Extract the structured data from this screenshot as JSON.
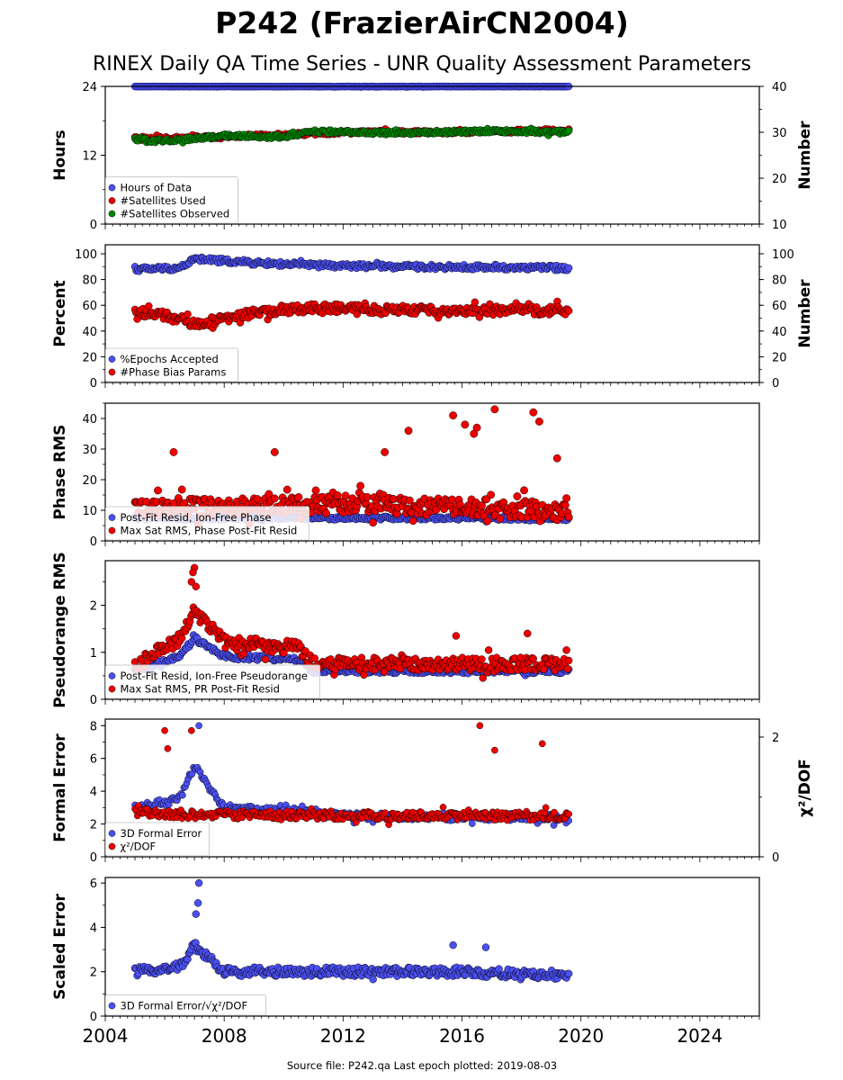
{
  "chart_data": {
    "title": "P242 (FrazierAirCN2004)",
    "subtitle": "RINEX Daily QA Time Series - UNR Quality Assessment Parameters",
    "footer": "Source file: P242.qa Last epoch plotted: 2019-08-03",
    "x_axis": {
      "min": 2004,
      "max": 2026,
      "ticks": [
        "2004",
        "2008",
        "2012",
        "2016",
        "2020",
        "2024"
      ],
      "data_start": 2005.0,
      "data_end": 2019.59
    },
    "colors": {
      "blue": "#4b4ff0",
      "red": "#ee0000",
      "green": "#008800",
      "navy": "#0a0a60"
    },
    "panels": [
      {
        "type": "scatter",
        "ylabel": "Hours",
        "ylim": [
          0,
          24
        ],
        "yticks": [
          "0",
          "12",
          "24"
        ],
        "y2label": "Number",
        "y2lim": [
          10,
          40
        ],
        "y2ticks": [
          "10",
          "20",
          "30",
          "40"
        ],
        "legend": [
          "Hours of Data",
          "#Satellites Used",
          "#Satellites Observed"
        ],
        "series": [
          {
            "name": "Hours of Data",
            "color": "blue",
            "axis": "left",
            "x": [
              2005.0,
              2008.0,
              2012.0,
              2016.0,
              2019.59
            ],
            "y": [
              24,
              24,
              24,
              24,
              24
            ]
          },
          {
            "name": "#Satellites Used",
            "color": "red",
            "axis": "right",
            "x": [
              2005.0,
              2008.0,
              2012.0,
              2016.0,
              2019.59
            ],
            "y": [
              28.6,
              29.0,
              30.0,
              30.0,
              30.5
            ]
          },
          {
            "name": "#Satellites Observed",
            "color": "green",
            "axis": "right",
            "x": [
              2005.0,
              2006.0,
              2008.0,
              2010.0,
              2011.0,
              2014.0,
              2017.0,
              2019.59
            ],
            "y": [
              28.5,
              28.0,
              29.3,
              29.0,
              30.2,
              29.8,
              30.3,
              30.0
            ]
          }
        ]
      },
      {
        "type": "scatter",
        "ylabel": "Percent",
        "ylim": [
          0,
          107
        ],
        "yticks": [
          "0",
          "20",
          "40",
          "60",
          "80",
          "100"
        ],
        "y2label": "Number",
        "y2lim": [
          0,
          107
        ],
        "y2ticks": [
          "0",
          "20",
          "40",
          "60",
          "80",
          "100"
        ],
        "legend": [
          "%Epochs Accepted",
          "#Phase Bias Params"
        ],
        "series": [
          {
            "name": "%Epochs Accepted",
            "color": "blue",
            "axis": "left",
            "x": [
              2005.0,
              2006.5,
              2007.0,
              2009.0,
              2011.0,
              2014.0,
              2019.59
            ],
            "y": [
              88,
              89,
              96,
              93,
              91,
              90,
              89
            ]
          },
          {
            "name": "#Phase Bias Params",
            "color": "red",
            "axis": "right",
            "x": [
              2005.0,
              2006.0,
              2007.0,
              2009.0,
              2011.0,
              2015.0,
              2019.59
            ],
            "y": [
              55,
              52,
              45,
              54,
              58,
              56,
              56
            ]
          }
        ]
      },
      {
        "type": "scatter",
        "ylabel": "Phase RMS",
        "ylim": [
          0,
          45
        ],
        "yticks": [
          "0",
          "10",
          "20",
          "30",
          "40"
        ],
        "legend": [
          "Post-Fit Resid, Ion-Free Phase",
          "Max Sat RMS, Phase Post-Fit Resid"
        ],
        "series": [
          {
            "name": "Post-Fit Resid, Ion-Free Phase",
            "color": "blue",
            "axis": "left",
            "x": [
              2005.0,
              2010.0,
              2015.0,
              2019.59
            ],
            "y": [
              7.5,
              7.5,
              7.5,
              7.2
            ]
          },
          {
            "name": "Max Sat RMS, Phase Post-Fit Resid",
            "color": "red",
            "axis": "left",
            "x": [
              2005.0,
              2008.0,
              2012.0,
              2016.0,
              2019.59
            ],
            "y": [
              11,
              11,
              12,
              11,
              10
            ]
          }
        ],
        "outliers": [
          [
            2015.7,
            41
          ],
          [
            2016.1,
            38
          ],
          [
            2016.4,
            35
          ],
          [
            2016.5,
            37
          ],
          [
            2017.1,
            43
          ],
          [
            2018.4,
            42
          ],
          [
            2018.6,
            39
          ],
          [
            2014.2,
            36
          ],
          [
            2006.3,
            29
          ],
          [
            2009.7,
            29
          ],
          [
            2013.4,
            29
          ],
          [
            2019.2,
            27
          ]
        ]
      },
      {
        "type": "scatter",
        "ylabel": "Pseudorange RMS",
        "ylim": [
          0,
          2.95
        ],
        "yticks": [
          "0",
          "1",
          "2"
        ],
        "legend": [
          "Post-Fit Resid, Ion-Free Pseudorange",
          "Max Sat RMS, PR Post-Fit Resid"
        ],
        "series": [
          {
            "name": "Post-Fit Resid, Ion-Free Pseudorange",
            "color": "blue",
            "axis": "left",
            "x": [
              2005.0,
              2006.5,
              2007.0,
              2008.0,
              2010.5,
              2011.0,
              2019.59
            ],
            "y": [
              0.6,
              0.9,
              1.3,
              0.9,
              0.85,
              0.6,
              0.6
            ]
          },
          {
            "name": "Max Sat RMS, PR Post-Fit Resid",
            "color": "red",
            "axis": "left",
            "x": [
              2005.0,
              2006.5,
              2007.0,
              2008.0,
              2010.5,
              2011.0,
              2019.59
            ],
            "y": [
              0.7,
              1.3,
              1.9,
              1.2,
              1.1,
              0.75,
              0.75
            ]
          }
        ],
        "outliers": [
          [
            2007.0,
            2.8
          ],
          [
            2006.95,
            2.7
          ],
          [
            2006.9,
            2.5
          ],
          [
            2007.05,
            2.4
          ],
          [
            2018.2,
            1.4
          ],
          [
            2015.8,
            1.35
          ]
        ]
      },
      {
        "type": "scatter",
        "ylabel": "Formal Error",
        "ylim": [
          0,
          8.4
        ],
        "yticks": [
          "0",
          "2",
          "4",
          "6",
          "8"
        ],
        "y2label": "χ²/DOF",
        "y2lim": [
          0,
          2.3
        ],
        "y2ticks": [
          "0",
          "2"
        ],
        "legend": [
          "3D Formal Error",
          "χ²/DOF"
        ],
        "series": [
          {
            "name": "3D Formal Error",
            "color": "blue",
            "axis": "left",
            "x": [
              2005.0,
              2006.5,
              2007.0,
              2008.0,
              2012.0,
              2019.59
            ],
            "y": [
              3.0,
              3.5,
              5.5,
              3.0,
              2.5,
              2.4
            ]
          },
          {
            "name": "χ²/DOF",
            "color": "red",
            "axis": "right",
            "x": [
              2005.0,
              2007.0,
              2010.0,
              2015.0,
              2019.59
            ],
            "y": [
              0.75,
              0.7,
              0.7,
              0.68,
              0.68
            ]
          }
        ],
        "outliers": [
          [
            2007.15,
            8.0
          ],
          [
            2016.6,
            8.0
          ],
          [
            2006.0,
            7.7
          ],
          [
            2006.9,
            7.7
          ],
          [
            2018.7,
            6.9
          ],
          [
            2006.1,
            6.6
          ],
          [
            2017.1,
            6.5
          ]
        ]
      },
      {
        "type": "scatter",
        "ylabel": "Scaled Error",
        "ylim": [
          0,
          6.25
        ],
        "yticks": [
          "0",
          "2",
          "4",
          "6"
        ],
        "legend": [
          "3D Formal Error/√χ²/DOF"
        ],
        "series": [
          {
            "name": "3D Formal Error/√χ²/DOF",
            "color": "blue",
            "axis": "left",
            "x": [
              2005.0,
              2006.5,
              2007.0,
              2008.0,
              2012.0,
              2016.0,
              2019.59
            ],
            "y": [
              2.0,
              2.2,
              3.2,
              2.0,
              2.0,
              2.0,
              1.8
            ]
          }
        ],
        "outliers": [
          [
            2007.15,
            6.0
          ],
          [
            2007.12,
            5.1
          ],
          [
            2007.05,
            4.6
          ],
          [
            2015.7,
            3.2
          ],
          [
            2016.8,
            3.1
          ]
        ]
      }
    ]
  }
}
